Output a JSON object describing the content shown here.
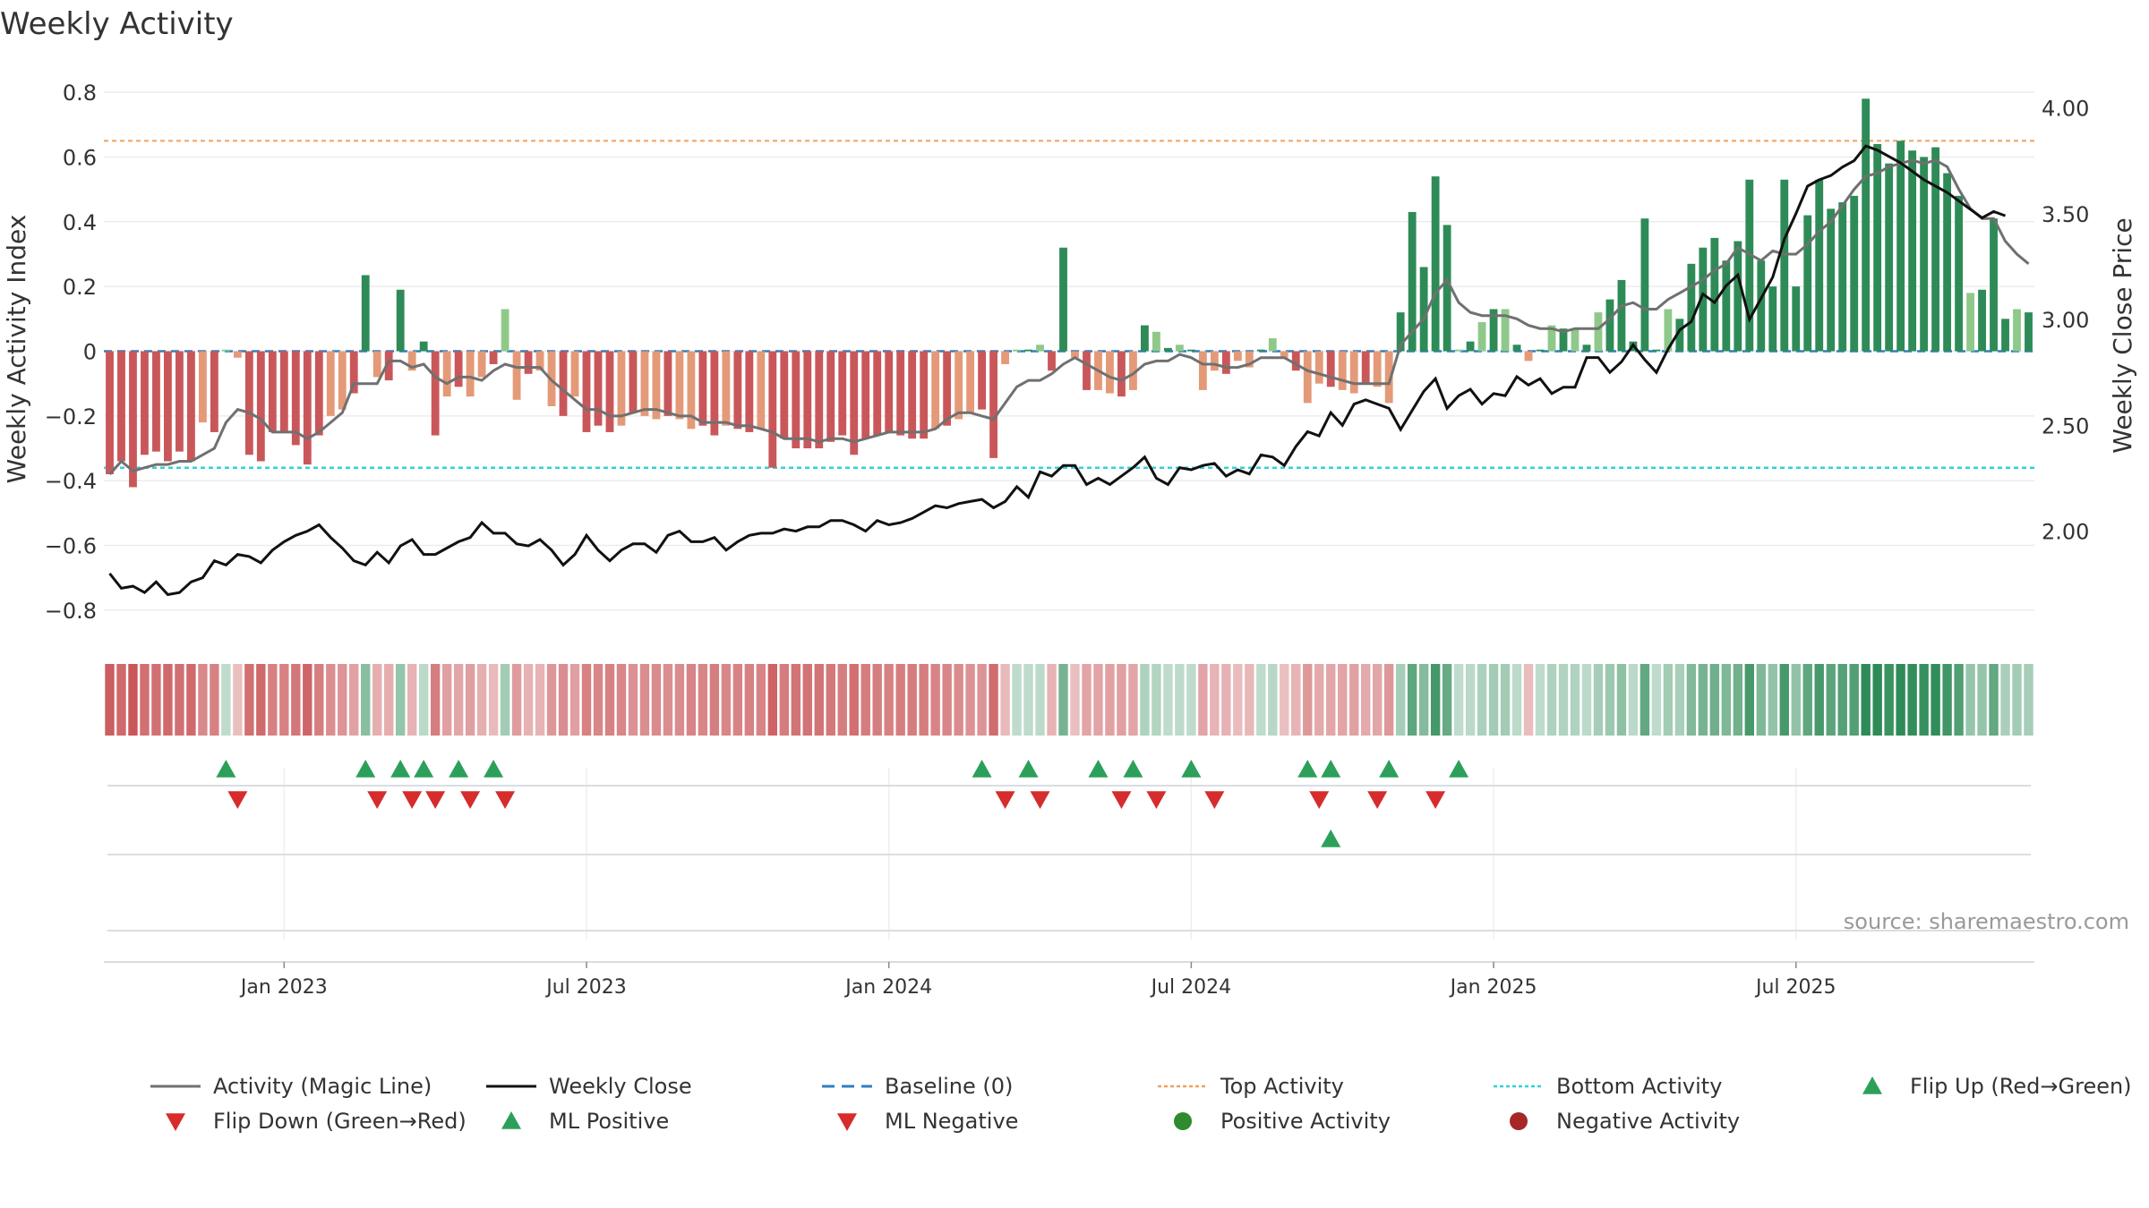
{
  "chart_data": {
    "type": "bar",
    "title": "Weekly Activity",
    "ylabel_left": "Weekly Activity Index",
    "ylabel_right": "Weekly Close Price",
    "ylim_left": [
      -0.85,
      0.85
    ],
    "ylim_right": [
      1.55,
      4.15
    ],
    "yticks_left": [
      -0.8,
      -0.6,
      -0.4,
      -0.2,
      0,
      0.2,
      0.4,
      0.6,
      0.8
    ],
    "yticks_left_labels": [
      "−0.8",
      "−0.6",
      "−0.4",
      "−0.2",
      "0",
      "0.2",
      "0.4",
      "0.6",
      "0.8"
    ],
    "yticks_right": [
      2.0,
      2.5,
      3.0,
      3.5,
      4.0
    ],
    "yticks_right_labels": [
      "2.00",
      "2.50",
      "3.00",
      "3.50",
      "4.00"
    ],
    "x_ticks": [
      {
        "label": "Jan 2023",
        "week": 15
      },
      {
        "label": "Jul 2023",
        "week": 41
      },
      {
        "label": "Jan 2024",
        "week": 67
      },
      {
        "label": "Jul 2024",
        "week": 93
      },
      {
        "label": "Jan 2025",
        "week": 119
      },
      {
        "label": "Jul 2025",
        "week": 145
      }
    ],
    "top_activity": 0.65,
    "bottom_activity": -0.36,
    "baseline": 0,
    "activity": [
      -0.38,
      -0.34,
      -0.42,
      -0.32,
      -0.31,
      -0.34,
      -0.31,
      -0.34,
      -0.22,
      -0.25,
      0.005,
      -0.02,
      -0.32,
      -0.34,
      -0.25,
      -0.25,
      -0.29,
      -0.35,
      -0.26,
      -0.2,
      -0.18,
      -0.13,
      0.235,
      -0.08,
      -0.09,
      0.19,
      -0.06,
      0.03,
      -0.26,
      -0.14,
      -0.11,
      -0.14,
      -0.08,
      -0.04,
      0.13,
      -0.15,
      -0.07,
      -0.06,
      -0.17,
      -0.2,
      -0.14,
      -0.25,
      -0.23,
      -0.25,
      -0.23,
      -0.19,
      -0.2,
      -0.21,
      -0.2,
      -0.21,
      -0.24,
      -0.23,
      -0.26,
      -0.23,
      -0.24,
      -0.25,
      -0.24,
      -0.36,
      -0.27,
      -0.3,
      -0.3,
      -0.3,
      -0.28,
      -0.26,
      -0.32,
      -0.27,
      -0.26,
      -0.25,
      -0.26,
      -0.27,
      -0.27,
      -0.24,
      -0.23,
      -0.21,
      -0.19,
      -0.18,
      -0.33,
      -0.04,
      0.005,
      0.005,
      0.02,
      -0.06,
      0.32,
      -0.02,
      -0.12,
      -0.12,
      -0.13,
      -0.14,
      -0.12,
      0.08,
      0.06,
      0.01,
      0.02,
      0.005,
      -0.12,
      -0.06,
      -0.07,
      -0.03,
      -0.05,
      0.005,
      0.04,
      -0.02,
      -0.06,
      -0.16,
      -0.1,
      -0.11,
      -0.12,
      -0.13,
      -0.1,
      -0.11,
      -0.16,
      0.12,
      0.43,
      0.26,
      0.54,
      0.39,
      0.005,
      0.03,
      0.09,
      0.13,
      0.13,
      0.02,
      -0.03,
      0.005,
      0.08,
      0.07,
      0.07,
      0.02,
      0.12,
      0.16,
      0.22,
      0.03,
      0.41,
      0.005,
      0.13,
      0.1,
      0.27,
      0.32,
      0.35,
      0.28,
      0.34,
      0.53,
      0.28,
      0.2,
      0.53,
      0.2,
      0.42,
      0.53,
      0.44,
      0.46,
      0.48,
      0.78,
      0.64,
      0.58,
      0.65,
      0.62,
      0.6,
      0.63,
      0.55,
      0.48,
      0.18,
      0.19,
      0.41,
      0.1,
      0.13,
      0.12
    ],
    "magic_line": [
      -0.38,
      -0.34,
      -0.37,
      -0.36,
      -0.35,
      -0.35,
      -0.34,
      -0.34,
      -0.32,
      -0.3,
      -0.22,
      -0.18,
      -0.19,
      -0.21,
      -0.25,
      -0.25,
      -0.25,
      -0.27,
      -0.25,
      -0.22,
      -0.19,
      -0.1,
      -0.1,
      -0.1,
      -0.03,
      -0.03,
      -0.05,
      -0.04,
      -0.08,
      -0.1,
      -0.08,
      -0.08,
      -0.09,
      -0.06,
      -0.04,
      -0.05,
      -0.05,
      -0.05,
      -0.09,
      -0.12,
      -0.15,
      -0.18,
      -0.18,
      -0.2,
      -0.2,
      -0.19,
      -0.18,
      -0.18,
      -0.19,
      -0.2,
      -0.2,
      -0.22,
      -0.22,
      -0.22,
      -0.23,
      -0.23,
      -0.24,
      -0.25,
      -0.27,
      -0.27,
      -0.27,
      -0.28,
      -0.27,
      -0.27,
      -0.28,
      -0.27,
      -0.26,
      -0.25,
      -0.25,
      -0.25,
      -0.25,
      -0.24,
      -0.21,
      -0.19,
      -0.19,
      -0.2,
      -0.21,
      -0.16,
      -0.11,
      -0.09,
      -0.09,
      -0.07,
      -0.04,
      -0.02,
      -0.04,
      -0.06,
      -0.08,
      -0.09,
      -0.07,
      -0.04,
      -0.03,
      -0.03,
      -0.01,
      -0.02,
      -0.04,
      -0.04,
      -0.05,
      -0.05,
      -0.04,
      -0.02,
      -0.02,
      -0.02,
      -0.04,
      -0.06,
      -0.07,
      -0.08,
      -0.09,
      -0.1,
      -0.1,
      -0.1,
      -0.1,
      0.02,
      0.06,
      0.1,
      0.18,
      0.22,
      0.15,
      0.12,
      0.11,
      0.11,
      0.11,
      0.1,
      0.08,
      0.07,
      0.07,
      0.06,
      0.07,
      0.07,
      0.07,
      0.1,
      0.14,
      0.15,
      0.13,
      0.13,
      0.16,
      0.18,
      0.2,
      0.22,
      0.25,
      0.27,
      0.32,
      0.3,
      0.28,
      0.31,
      0.3,
      0.3,
      0.33,
      0.37,
      0.4,
      0.45,
      0.5,
      0.54,
      0.55,
      0.57,
      0.58,
      0.59,
      0.58,
      0.59,
      0.57,
      0.5,
      0.44,
      0.41,
      0.41,
      0.34,
      0.3,
      0.27
    ],
    "weekly_close": [
      1.8,
      1.73,
      1.74,
      1.71,
      1.76,
      1.7,
      1.71,
      1.76,
      1.78,
      1.86,
      1.84,
      1.89,
      1.88,
      1.85,
      1.91,
      1.95,
      1.98,
      2.0,
      2.03,
      1.97,
      1.92,
      1.86,
      1.84,
      1.9,
      1.85,
      1.93,
      1.96,
      1.89,
      1.89,
      1.92,
      1.95,
      1.97,
      2.04,
      1.99,
      1.99,
      1.94,
      1.93,
      1.96,
      1.91,
      1.84,
      1.89,
      1.98,
      1.91,
      1.86,
      1.91,
      1.94,
      1.94,
      1.9,
      1.98,
      2.0,
      1.95,
      1.95,
      1.97,
      1.91,
      1.95,
      1.98,
      1.99,
      1.99,
      2.01,
      2.0,
      2.02,
      2.02,
      2.05,
      2.05,
      2.03,
      2.0,
      2.05,
      2.03,
      2.04,
      2.06,
      2.09,
      2.12,
      2.11,
      2.13,
      2.14,
      2.15,
      2.11,
      2.14,
      2.21,
      2.16,
      2.28,
      2.26,
      2.31,
      2.31,
      2.22,
      2.25,
      2.22,
      2.26,
      2.3,
      2.35,
      2.25,
      2.22,
      2.3,
      2.29,
      2.31,
      2.32,
      2.26,
      2.29,
      2.27,
      2.36,
      2.35,
      2.31,
      2.4,
      2.47,
      2.45,
      2.56,
      2.5,
      2.6,
      2.62,
      2.6,
      2.58,
      2.48,
      2.57,
      2.66,
      2.72,
      2.58,
      2.64,
      2.67,
      2.6,
      2.65,
      2.64,
      2.73,
      2.69,
      2.72,
      2.65,
      2.68,
      2.68,
      2.82,
      2.82,
      2.75,
      2.8,
      2.88,
      2.81,
      2.75,
      2.86,
      2.95,
      2.99,
      3.12,
      3.08,
      3.16,
      3.21,
      3.0,
      3.1,
      3.2,
      3.38,
      3.5,
      3.63,
      3.66,
      3.68,
      3.72,
      3.75,
      3.82,
      3.8,
      3.77,
      3.74,
      3.7,
      3.66,
      3.63,
      3.6,
      3.56,
      3.52,
      3.48,
      3.51,
      3.49
    ],
    "activity_colors": {
      "strong_negative": "#c9575a",
      "weak_negative": "#e49a78",
      "strong_positive": "#2e8b57",
      "weak_positive": "#8fc98a"
    },
    "signals": {
      "flip_up": [
        10,
        22,
        25,
        27,
        30,
        33,
        75,
        79,
        85,
        88,
        93,
        103,
        105,
        110,
        116
      ],
      "flip_down": [
        11,
        23,
        26,
        28,
        31,
        34,
        77,
        80,
        87,
        90,
        95,
        104,
        109,
        114
      ],
      "ml_positive": [
        105
      ],
      "ml_negative": [],
      "positive_activity": [],
      "negative_activity": []
    },
    "legend": [
      {
        "label": "Activity (Magic Line)",
        "symbol": "line",
        "color": "#707070"
      },
      {
        "label": "Weekly Close",
        "symbol": "line",
        "color": "#111111"
      },
      {
        "label": "Baseline (0)",
        "symbol": "dash",
        "color": "#2f7fbf"
      },
      {
        "label": "Top Activity",
        "symbol": "dot",
        "color": "#f0a060"
      },
      {
        "label": "Bottom Activity",
        "symbol": "dot",
        "color": "#34d0d8"
      },
      {
        "label": "Flip Up (Red→Green)",
        "symbol": "tri-up",
        "color": "#2ca05a"
      },
      {
        "label": "Flip Down (Green→Red)",
        "symbol": "tri-down",
        "color": "#d62c2c"
      },
      {
        "label": "ML Positive",
        "symbol": "tri-up",
        "color": "#2ca05a"
      },
      {
        "label": "ML Negative",
        "symbol": "tri-down",
        "color": "#d62c2c"
      },
      {
        "label": "Positive Activity",
        "symbol": "circle",
        "color": "#2e8b2e"
      },
      {
        "label": "Negative Activity",
        "symbol": "circle",
        "color": "#a52727"
      }
    ],
    "source": "source: sharemaestro.com"
  }
}
